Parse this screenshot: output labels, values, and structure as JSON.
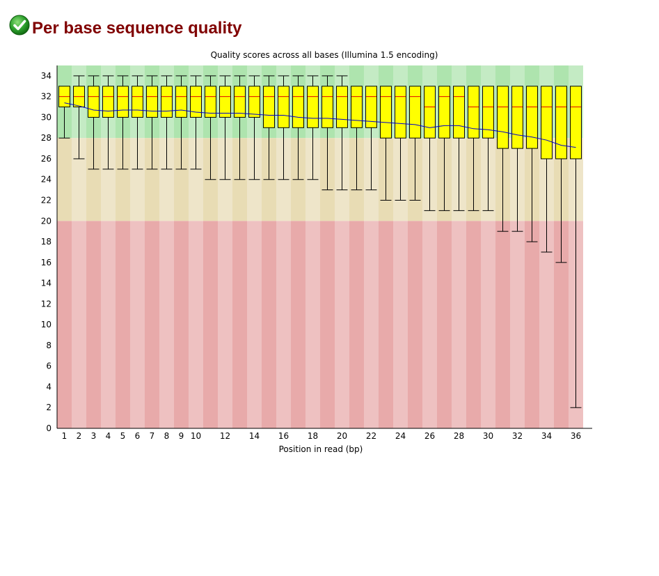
{
  "header": {
    "title": "Per base sequence quality",
    "status_icon": "check-circle-icon",
    "status": "pass"
  },
  "chart_data": {
    "type": "box",
    "title": "Quality scores across all bases (Illumina 1.5 encoding)",
    "xlabel": "Position in read (bp)",
    "ylabel": "",
    "ylim": [
      0,
      35
    ],
    "yticks": [
      0,
      2,
      4,
      6,
      8,
      10,
      12,
      14,
      16,
      18,
      20,
      22,
      24,
      26,
      28,
      30,
      32,
      34
    ],
    "x_tick_labels": [
      "1",
      "2",
      "3",
      "4",
      "5",
      "6",
      "7",
      "8",
      "9",
      "10",
      "12",
      "14",
      "16",
      "18",
      "20",
      "22",
      "24",
      "26",
      "28",
      "30",
      "32",
      "34",
      "36"
    ],
    "positions": [
      1,
      2,
      3,
      4,
      5,
      6,
      7,
      8,
      9,
      10,
      11,
      12,
      13,
      14,
      15,
      16,
      17,
      18,
      19,
      20,
      21,
      22,
      23,
      24,
      25,
      26,
      27,
      28,
      29,
      30,
      31,
      32,
      33,
      34,
      35,
      36
    ],
    "series": [
      {
        "name": "",
        "upper_whisker": [
          33,
          34,
          34,
          34,
          34,
          34,
          34,
          34,
          34,
          34,
          34,
          34,
          34,
          34,
          34,
          34,
          34,
          34,
          34,
          34,
          33,
          33,
          33,
          33,
          33,
          33,
          33,
          33,
          33,
          33,
          33,
          33,
          33,
          33,
          33,
          33
        ],
        "q3": [
          33,
          33,
          33,
          33,
          33,
          33,
          33,
          33,
          33,
          33,
          33,
          33,
          33,
          33,
          33,
          33,
          33,
          33,
          33,
          33,
          33,
          33,
          33,
          33,
          33,
          33,
          33,
          33,
          33,
          33,
          33,
          33,
          33,
          33,
          33,
          33
        ],
        "median": [
          32,
          32,
          32,
          32,
          32,
          32,
          32,
          32,
          32,
          32,
          32,
          32,
          32,
          32,
          32,
          32,
          32,
          32,
          32,
          32,
          32,
          32,
          32,
          32,
          32,
          31,
          32,
          32,
          31,
          31,
          31,
          31,
          31,
          31,
          31,
          31
        ],
        "q1": [
          31,
          31,
          30,
          30,
          30,
          30,
          30,
          30,
          30,
          30,
          30,
          30,
          30,
          30,
          29,
          29,
          29,
          29,
          29,
          29,
          29,
          29,
          28,
          28,
          28,
          28,
          28,
          28,
          28,
          28,
          27,
          27,
          27,
          26,
          26,
          26
        ],
        "lower_whisker": [
          28,
          26,
          25,
          25,
          25,
          25,
          25,
          25,
          25,
          25,
          24,
          24,
          24,
          24,
          24,
          24,
          24,
          24,
          23,
          23,
          23,
          23,
          22,
          22,
          22,
          21,
          21,
          21,
          21,
          21,
          19,
          19,
          18,
          17,
          16,
          2
        ],
        "mean": [
          31.4,
          31.1,
          30.7,
          30.6,
          30.7,
          30.7,
          30.6,
          30.6,
          30.7,
          30.5,
          30.4,
          30.4,
          30.4,
          30.3,
          30.2,
          30.2,
          30.0,
          29.9,
          29.9,
          29.8,
          29.7,
          29.6,
          29.5,
          29.4,
          29.3,
          29.0,
          29.2,
          29.2,
          28.9,
          28.8,
          28.6,
          28.3,
          28.1,
          27.8,
          27.3,
          27.1
        ]
      }
    ],
    "background_bands": [
      {
        "from": 28,
        "to": 35,
        "color": "#aee4ae"
      },
      {
        "from": 20,
        "to": 28,
        "color": "#e8dcb4"
      },
      {
        "from": 0,
        "to": 20,
        "color": "#e8aaaa"
      }
    ],
    "colors": {
      "box_fill": "#ffff00",
      "median": "#e00000",
      "mean_line": "#0000cc",
      "whisker": "#000000"
    },
    "grid": false,
    "legend": "none"
  }
}
